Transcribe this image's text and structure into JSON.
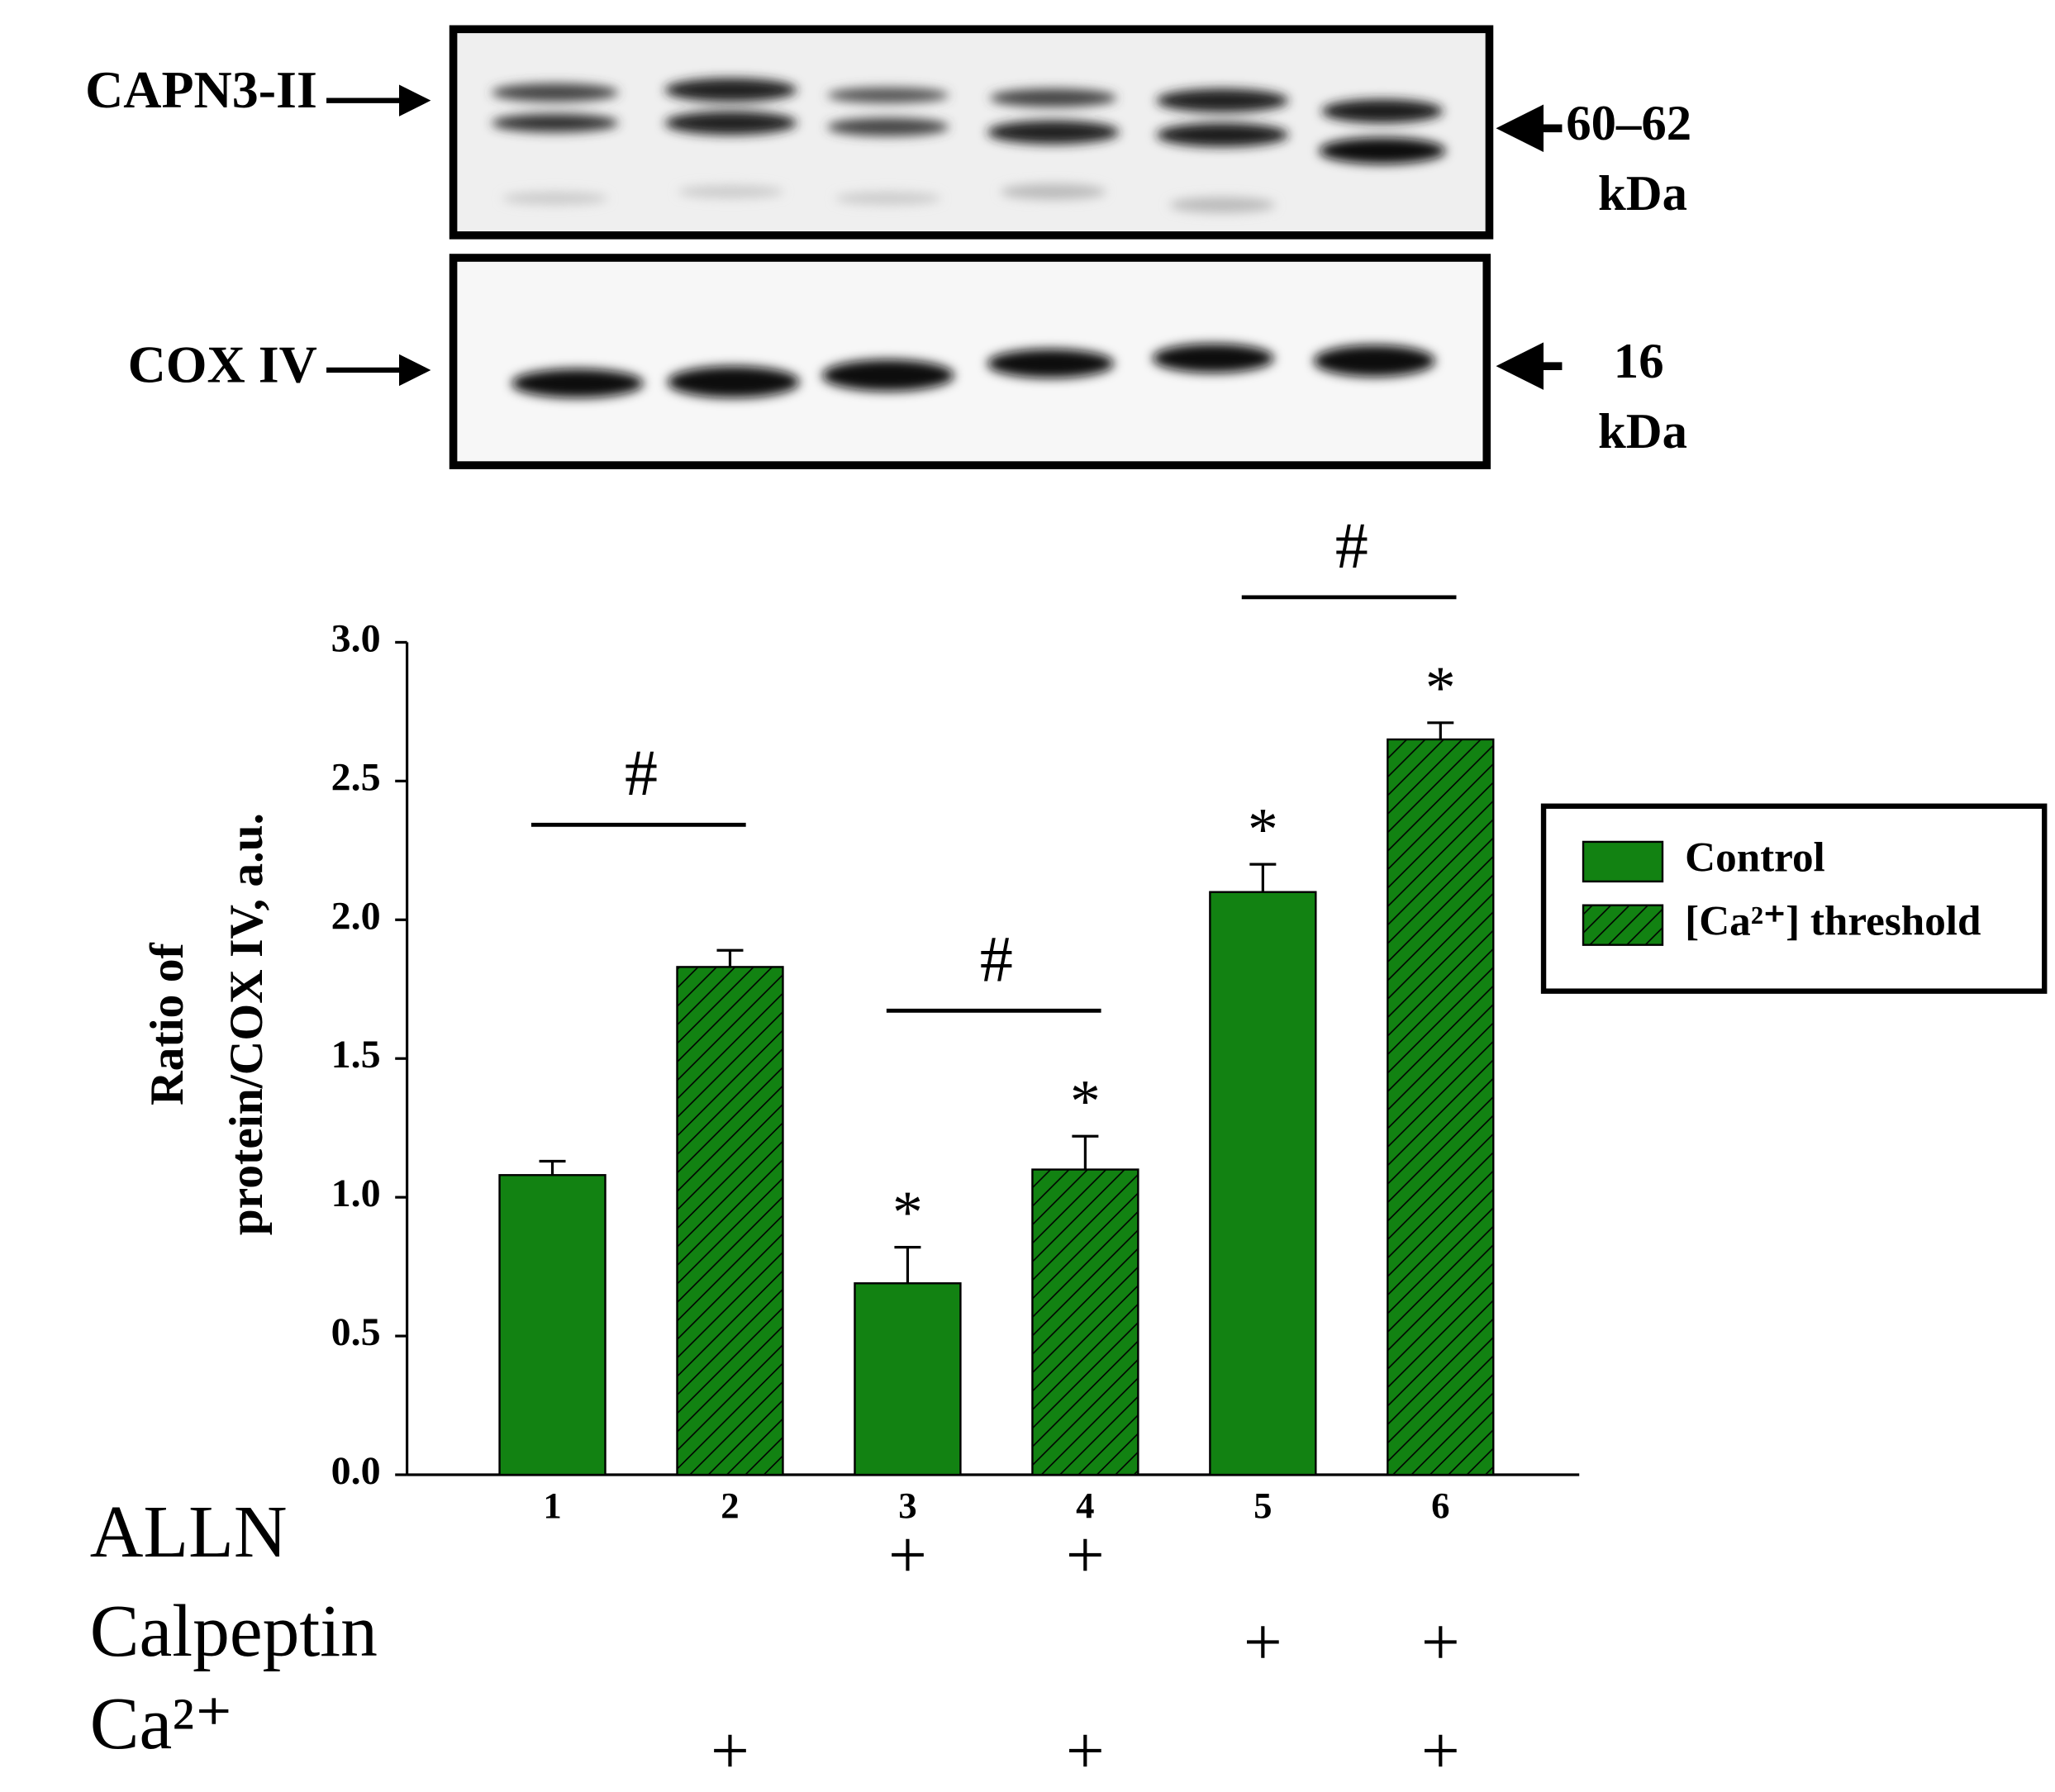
{
  "blot": {
    "top_label": "CAPN3-II",
    "top_size": "60–62",
    "top_unit": "kDa",
    "bottom_label": "COX IV",
    "bottom_size": "16",
    "bottom_unit": "kDa"
  },
  "chart_data": {
    "type": "bar",
    "ylabel": [
      "Ratio of",
      "protein/COX IV, a.u."
    ],
    "categories": [
      "1",
      "2",
      "3",
      "4",
      "5",
      "6"
    ],
    "series": [
      {
        "name": "Control",
        "color": "#128212",
        "values": [
          1.08,
          null,
          0.69,
          null,
          2.1,
          null
        ],
        "errors": [
          0.05,
          null,
          0.13,
          null,
          0.1,
          null
        ]
      },
      {
        "name": "[Ca²⁺] threshold",
        "color": "#128212",
        "pattern": "hatch",
        "values": [
          null,
          1.83,
          null,
          1.1,
          null,
          2.65
        ],
        "errors": [
          null,
          0.06,
          null,
          0.12,
          null,
          0.06
        ]
      }
    ],
    "ylim": [
      0,
      3
    ],
    "yticks": [
      {
        "value": 0,
        "label": "0.0"
      },
      0.5,
      {
        "value": 1,
        "label": "1.0"
      },
      1.5,
      {
        "value": 2,
        "label": "2.0"
      },
      2.5,
      {
        "value": 3,
        "label": "3.0"
      }
    ],
    "legend": "right",
    "annotations": [
      {
        "text": "*",
        "category": "3"
      },
      {
        "text": "*",
        "category": "4"
      },
      {
        "text": "*",
        "category": "5"
      },
      {
        "text": "*",
        "category": "6"
      }
    ],
    "brackets": [
      {
        "text": "#",
        "categories": [
          "1",
          "2"
        ]
      },
      {
        "text": "#",
        "categories": [
          "3",
          "4"
        ]
      },
      {
        "text": "#",
        "categories": [
          "5",
          "6"
        ]
      }
    ],
    "treatments": [
      {
        "label": "ALLN",
        "marks": [
          null,
          null,
          "+",
          "+",
          null,
          null
        ]
      },
      {
        "label": "Calpeptin",
        "marks": [
          null,
          null,
          null,
          null,
          "+",
          "+"
        ]
      },
      {
        "label": "Ca²⁺",
        "marks": [
          null,
          "+",
          null,
          "+",
          null,
          "+"
        ]
      }
    ]
  }
}
